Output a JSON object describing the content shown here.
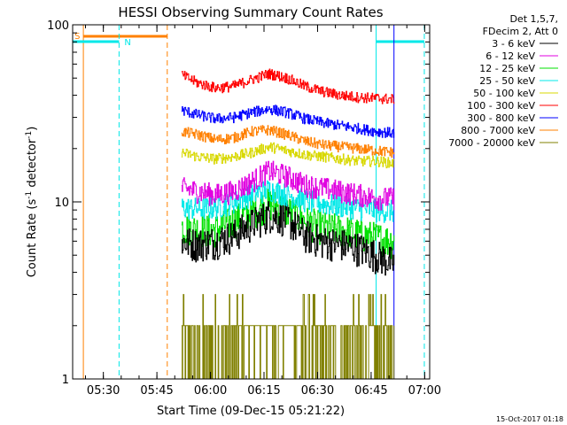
{
  "chart_data": {
    "type": "line",
    "title": "HESSI Observing Summary Count Rates",
    "xlabel": "Start Time (09-Dec-15 05:21:22)",
    "ylabel": "Count Rate (s⁻¹ detector⁻¹)",
    "ylabel_parts": [
      "Count Rate (s",
      "-1",
      " detector",
      "-1",
      ")"
    ],
    "yscale": "log",
    "ylim": [
      1,
      100
    ],
    "xlim_minutes": [
      0,
      100
    ],
    "x_ticks": [
      "05:30",
      "05:45",
      "06:00",
      "06:15",
      "06:30",
      "06:45",
      "07:00"
    ],
    "x_tick_minutes": [
      8.6,
      23.6,
      38.6,
      53.6,
      68.6,
      83.6,
      98.6
    ],
    "y_ticks": [
      "1",
      "10",
      "100"
    ],
    "y_tick_values": [
      1,
      10,
      100
    ],
    "legend_position": "top-right outside plot",
    "legend_header": [
      "Det 1,5,7,",
      "FDecim 2, Att 0"
    ],
    "data_interval_minutes": [
      30.5,
      90.0
    ],
    "series": [
      {
        "name": "3 - 6 keV",
        "color": "#000000",
        "x_minutes": [
          30.5,
          35,
          40,
          45,
          50,
          55,
          60,
          65,
          70,
          75,
          80,
          85,
          90
        ],
        "values": [
          6.0,
          5.8,
          6.0,
          6.5,
          7.5,
          8.5,
          8.0,
          6.5,
          6.0,
          5.8,
          5.5,
          5.0,
          4.5
        ]
      },
      {
        "name": "6 - 12 keV",
        "color": "#e000e0",
        "x_minutes": [
          30.5,
          35,
          40,
          45,
          50,
          55,
          60,
          65,
          70,
          75,
          80,
          85,
          90
        ],
        "values": [
          12.0,
          11.5,
          11.0,
          11.5,
          13.0,
          15.0,
          14.0,
          12.5,
          12.0,
          11.5,
          11.0,
          10.5,
          10.5
        ]
      },
      {
        "name": "12 - 25 keV",
        "color": "#00e000",
        "x_minutes": [
          30.5,
          35,
          40,
          45,
          50,
          55,
          60,
          65,
          70,
          75,
          80,
          85,
          90
        ],
        "values": [
          7.2,
          7.0,
          7.0,
          7.8,
          8.8,
          9.8,
          9.0,
          7.8,
          7.2,
          7.0,
          6.6,
          6.3,
          6.0
        ]
      },
      {
        "name": "25 - 50 keV",
        "color": "#00e8e8",
        "x_minutes": [
          30.5,
          35,
          40,
          45,
          50,
          55,
          60,
          65,
          70,
          75,
          80,
          85,
          90
        ],
        "values": [
          9.3,
          9.2,
          9.3,
          10.0,
          11.0,
          11.8,
          11.0,
          10.2,
          9.8,
          9.5,
          9.2,
          9.0,
          8.9
        ]
      },
      {
        "name": "50 - 100 keV",
        "color": "#d8d800",
        "x_minutes": [
          30.5,
          35,
          40,
          45,
          50,
          55,
          60,
          65,
          70,
          75,
          80,
          85,
          90
        ],
        "values": [
          19.0,
          18.0,
          17.5,
          18.0,
          19.0,
          20.5,
          19.5,
          18.5,
          18.0,
          17.5,
          17.0,
          17.0,
          16.5
        ]
      },
      {
        "name": "100 - 300 keV",
        "color": "#ff0000",
        "x_minutes": [
          30.5,
          35,
          40,
          45,
          50,
          55,
          60,
          65,
          70,
          75,
          80,
          85,
          90
        ],
        "values": [
          52.0,
          47.0,
          44.0,
          45.0,
          49.0,
          53.0,
          50.0,
          45.0,
          42.0,
          40.0,
          39.0,
          38.5,
          38.0
        ]
      },
      {
        "name": "300 - 800 keV",
        "color": "#0000ff",
        "x_minutes": [
          30.5,
          35,
          40,
          45,
          50,
          55,
          60,
          65,
          70,
          75,
          80,
          85,
          90
        ],
        "values": [
          33.0,
          31.0,
          29.5,
          30.0,
          32.0,
          33.5,
          32.0,
          29.5,
          28.0,
          27.0,
          26.0,
          25.0,
          24.5
        ]
      },
      {
        "name": "800 - 7000 keV",
        "color": "#ff8000",
        "x_minutes": [
          30.5,
          35,
          40,
          45,
          50,
          55,
          60,
          65,
          70,
          75,
          80,
          85,
          90
        ],
        "values": [
          25.0,
          24.0,
          22.5,
          23.0,
          25.0,
          25.5,
          24.0,
          22.0,
          21.0,
          20.5,
          20.0,
          19.5,
          19.0
        ]
      },
      {
        "name": "7000 - 20000 keV",
        "color": "#808000",
        "x_minutes": [
          30.5,
          35,
          40,
          45,
          50,
          55,
          60,
          65,
          70,
          75,
          80,
          85,
          90
        ],
        "values": [
          1.0,
          1.5,
          1.0,
          2.0,
          2.0,
          3.0,
          2.0,
          2.0,
          1.0,
          2.0,
          1.0,
          1.0,
          1.0
        ]
      }
    ],
    "annotations": {
      "saa_label": "S",
      "night_label": "N",
      "saa_color": "#ff8000",
      "night_color": "#00e8e8",
      "saa_x_minutes": [
        3.0,
        26.5
      ],
      "night_periods_x_minutes": [
        [
          0,
          13.0
        ],
        [
          85.0,
          98.5
        ]
      ]
    }
  },
  "footer": {
    "timestamp": "15-Oct-2017 01:18"
  }
}
